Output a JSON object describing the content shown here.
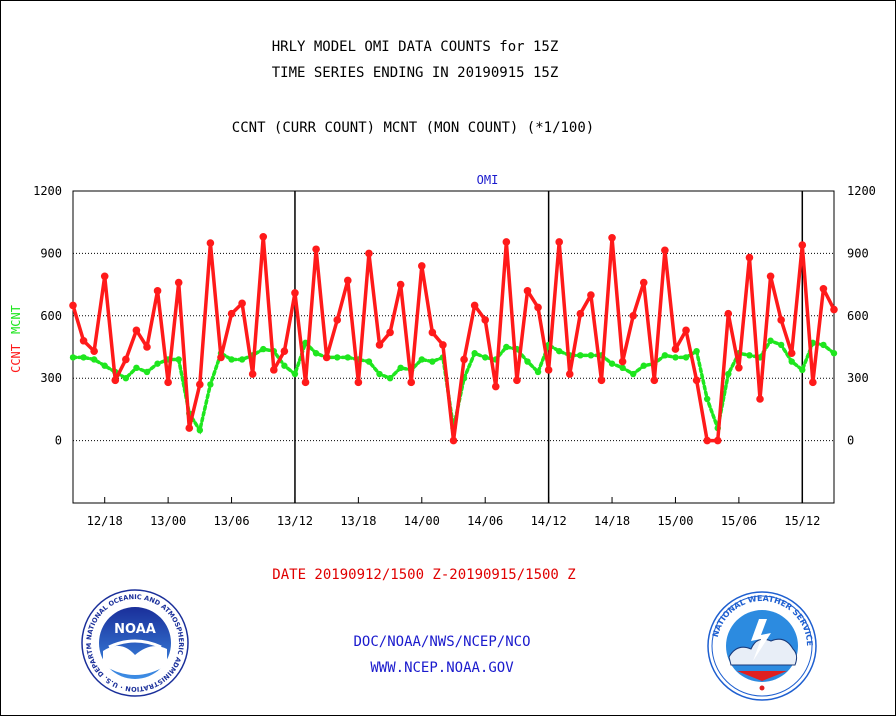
{
  "header": {
    "title_line1": "HRLY MODEL OMI DATA COUNTS for 15Z",
    "title_line2": "TIME SERIES ENDING IN 20190915 15Z",
    "subtitle": "CCNT (CURR COUNT) MCNT (MON COUNT) (*1/100)"
  },
  "footer": {
    "date_range": "DATE 20190912/1500 Z-20190915/1500 Z",
    "line1": "DOC/NOAA/NWS/NCEP/NCO",
    "line2": "WWW.NCEP.NOAA.GOV"
  },
  "logos": {
    "noaa_text": "NOAA",
    "noaa_ring_text": "NATIONAL OCEANIC AND ATMOSPHERIC ADMINISTRATION · U.S. DEPARTMENT OF COMMERCE",
    "nws_ring_text": "NATIONAL WEATHER SERVICE"
  },
  "colors": {
    "ccnt": "#ff1a1a",
    "mcnt": "#1ee61e",
    "footer_blue": "#1a1acd",
    "date_red": "#e00000"
  },
  "chart_data": {
    "type": "line",
    "title": "OMI",
    "ylabel_left": [
      "CCNT",
      "MCNT"
    ],
    "ylim": [
      -300,
      1200
    ],
    "yticks": [
      0,
      300,
      600,
      900,
      1200
    ],
    "grid": true,
    "xlim": [
      0,
      72
    ],
    "x_tick_labels": [
      {
        "x": 3,
        "label": "12/18"
      },
      {
        "x": 9,
        "label": "13/00"
      },
      {
        "x": 15,
        "label": "13/06"
      },
      {
        "x": 21,
        "label": "13/12"
      },
      {
        "x": 27,
        "label": "13/18"
      },
      {
        "x": 33,
        "label": "14/00"
      },
      {
        "x": 39,
        "label": "14/06"
      },
      {
        "x": 45,
        "label": "14/12"
      },
      {
        "x": 51,
        "label": "14/18"
      },
      {
        "x": 57,
        "label": "15/00"
      },
      {
        "x": 63,
        "label": "15/06"
      },
      {
        "x": 69,
        "label": "15/12"
      }
    ],
    "day_boundaries": [
      21,
      45,
      69
    ],
    "x_hours_from_start": [
      0,
      1,
      2,
      3,
      4,
      5,
      6,
      7,
      8,
      9,
      10,
      11,
      12,
      13,
      14,
      15,
      16,
      17,
      18,
      19,
      20,
      21,
      22,
      23,
      24,
      25,
      26,
      27,
      28,
      29,
      30,
      31,
      32,
      33,
      34,
      35,
      36,
      37,
      38,
      39,
      40,
      41,
      42,
      43,
      44,
      45,
      46,
      47,
      48,
      49,
      50,
      51,
      52,
      53,
      54,
      55,
      56,
      57,
      58,
      59,
      60,
      61,
      62,
      63,
      64,
      65,
      66,
      67,
      68,
      69,
      70,
      71,
      72
    ],
    "series": [
      {
        "name": "CCNT",
        "values": [
          650,
          480,
          430,
          790,
          290,
          390,
          530,
          450,
          720,
          280,
          760,
          60,
          270,
          950,
          400,
          610,
          660,
          320,
          980,
          340,
          430,
          710,
          280,
          920,
          400,
          580,
          770,
          280,
          900,
          460,
          520,
          750,
          280,
          840,
          520,
          460,
          0,
          390,
          650,
          580,
          260,
          955,
          290,
          720,
          640,
          340,
          955,
          320,
          610,
          700,
          290,
          975,
          380,
          600,
          760,
          290,
          915,
          440,
          530,
          290,
          0,
          0,
          610,
          350,
          880,
          200,
          790,
          580,
          420,
          940,
          280,
          730,
          630
        ]
      },
      {
        "name": "MCNT",
        "values": [
          400,
          400,
          390,
          360,
          330,
          300,
          350,
          330,
          370,
          390,
          390,
          130,
          50,
          270,
          420,
          390,
          390,
          410,
          440,
          430,
          360,
          320,
          470,
          420,
          400,
          400,
          400,
          390,
          380,
          320,
          300,
          350,
          340,
          390,
          380,
          400,
          60,
          300,
          420,
          400,
          390,
          450,
          440,
          380,
          330,
          460,
          430,
          410,
          410,
          410,
          410,
          370,
          350,
          320,
          360,
          370,
          410,
          400,
          400,
          430,
          200,
          60,
          320,
          420,
          410,
          400,
          480,
          460,
          380,
          340,
          470,
          460,
          420
        ]
      }
    ]
  }
}
